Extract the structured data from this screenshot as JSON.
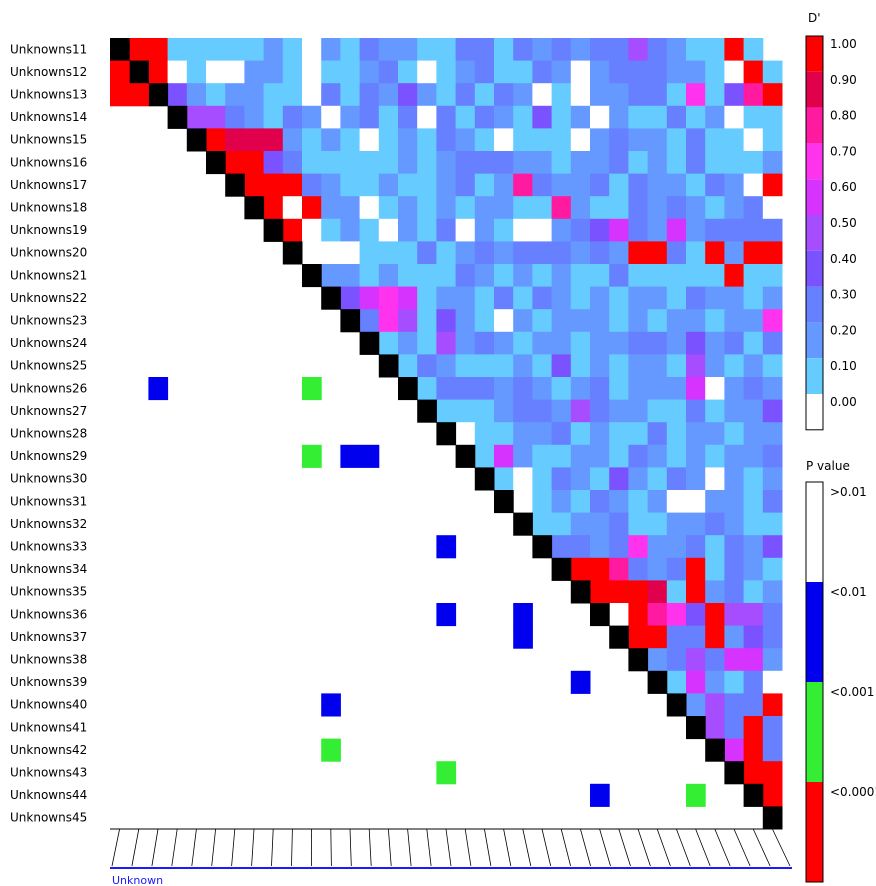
{
  "chart_data": {
    "type": "heatmap",
    "title": "",
    "markers": [
      "Unknowns11",
      "Unknowns12",
      "Unknowns13",
      "Unknowns14",
      "Unknowns15",
      "Unknowns16",
      "Unknowns17",
      "Unknowns18",
      "Unknowns19",
      "Unknowns20",
      "Unknowns21",
      "Unknowns22",
      "Unknowns23",
      "Unknowns24",
      "Unknowns25",
      "Unknowns26",
      "Unknowns27",
      "Unknowns28",
      "Unknowns29",
      "Unknowns30",
      "Unknowns31",
      "Unknowns32",
      "Unknowns33",
      "Unknowns34",
      "Unknowns35",
      "Unknowns36",
      "Unknowns37",
      "Unknowns38",
      "Unknowns39",
      "Unknowns40",
      "Unknowns41",
      "Unknowns42",
      "Unknowns43",
      "Unknowns44",
      "Unknowns45"
    ],
    "upper_triangle_metric": "D'",
    "lower_triangle_metric": "P value",
    "d_prime_legend": {
      "title": "D'",
      "labels": [
        "1.00",
        "0.90",
        "0.80",
        "0.70",
        "0.60",
        "0.50",
        "0.40",
        "0.30",
        "0.20",
        "0.10",
        "0.00"
      ],
      "colors": [
        "#ff0000",
        "#e0004c",
        "#ff1aa0",
        "#ff33ee",
        "#d633ff",
        "#a64dff",
        "#7a52ff",
        "#6680ff",
        "#6699ff",
        "#66ccff",
        "#ffffff"
      ]
    },
    "p_value_legend": {
      "title": "P value",
      "labels": [
        ">0.01",
        "<0.01",
        "<0.001",
        "<0.0001"
      ],
      "colors": [
        "#ffffff",
        "#0000ee",
        "#33ee33",
        "#ff0000"
      ]
    },
    "x_axis_label": "Unknown",
    "diagonal_color": "#000000",
    "bin_index": {
      "0": "0.00",
      "1": "0.10",
      "2": "0.20",
      "3": "0.30",
      "4": "0.40",
      "5": "0.50",
      "6": "0.60",
      "7": "0.70",
      "8": "0.80",
      "9": "0.90",
      "10": "1.00"
    },
    "d_prime_bins": [
      [
        10,
        10,
        1,
        1,
        1,
        1,
        1,
        2,
        1,
        0,
        2,
        1,
        3,
        2,
        2,
        1,
        1,
        3,
        3,
        1,
        3,
        2,
        3,
        2,
        3,
        3,
        5,
        3,
        2,
        1,
        1,
        10,
        1
      ],
      [
        10,
        0,
        1,
        0,
        0,
        2,
        2,
        1,
        0,
        1,
        1,
        2,
        3,
        1,
        0,
        1,
        2,
        3,
        1,
        1,
        3,
        2,
        0,
        2,
        3,
        3,
        3,
        2,
        2,
        1,
        0,
        10,
        1
      ],
      [
        4,
        2,
        1,
        2,
        2,
        1,
        1,
        0,
        3,
        1,
        3,
        2,
        4,
        2,
        1,
        3,
        1,
        3,
        2,
        0,
        1,
        0,
        2,
        2,
        3,
        3,
        1,
        7,
        1,
        4,
        8,
        10,
        1
      ],
      [
        5,
        5,
        3,
        2,
        1,
        3,
        2,
        0,
        2,
        3,
        1,
        3,
        0,
        3,
        1,
        3,
        2,
        1,
        4,
        1,
        2,
        0,
        2,
        1,
        1,
        3,
        1,
        2,
        0,
        1,
        1,
        10,
        2
      ],
      [
        10,
        9,
        9,
        9,
        2,
        1,
        2,
        1,
        0,
        1,
        2,
        1,
        3,
        2,
        1,
        0,
        1,
        1,
        1,
        0,
        2,
        3,
        2,
        2,
        1,
        3,
        1,
        1,
        0,
        1,
        1,
        10,
        1
      ],
      [
        10,
        10,
        4,
        3,
        1,
        1,
        1,
        1,
        1,
        2,
        1,
        2,
        3,
        3,
        3,
        2,
        2,
        1,
        2,
        2,
        3,
        1,
        2,
        1,
        3,
        1,
        1,
        1,
        2,
        3,
        0,
        6,
        1
      ],
      [
        10,
        10,
        10,
        3,
        2,
        1,
        1,
        2,
        1,
        1,
        2,
        3,
        1,
        2,
        8,
        3,
        2,
        2,
        3,
        1,
        3,
        2,
        2,
        1,
        3,
        2,
        0,
        10,
        1,
        1,
        7,
        3,
        3
      ],
      [
        10,
        0,
        10,
        2,
        2,
        0,
        1,
        2,
        1,
        2,
        1,
        2,
        2,
        1,
        1,
        8,
        2,
        1,
        1,
        3,
        2,
        3,
        2,
        1,
        2,
        3,
        0,
        4,
        1,
        3,
        3,
        10,
        1
      ],
      [
        10,
        0,
        1,
        2,
        1,
        0,
        2,
        1,
        3,
        0,
        2,
        1,
        0,
        0,
        2,
        3,
        4,
        6,
        3,
        2,
        6,
        2,
        3,
        3,
        3,
        3,
        4,
        5,
        3,
        1,
        1,
        10,
        2
      ],
      [
        0,
        0,
        0,
        1,
        1,
        1,
        3,
        1,
        2,
        3,
        2,
        3,
        3,
        3,
        2,
        3,
        2,
        10,
        10,
        3,
        1,
        10,
        2,
        10,
        10,
        10,
        10,
        10,
        2
      ],
      [
        2,
        2,
        1,
        2,
        1,
        1,
        1,
        3,
        2,
        1,
        2,
        1,
        2,
        1,
        1,
        3,
        1,
        1,
        1,
        1,
        1,
        10,
        1,
        1,
        1,
        3,
        4,
        3,
        1
      ],
      [
        4,
        6,
        7,
        6,
        1,
        2,
        2,
        1,
        3,
        1,
        3,
        2,
        1,
        2,
        1,
        2,
        2,
        1,
        3,
        2,
        2,
        1,
        2,
        3,
        5,
        6,
        2,
        1,
        1
      ],
      [
        3,
        7,
        5,
        1,
        4,
        2,
        1,
        0,
        2,
        1,
        2,
        2,
        2,
        1,
        2,
        1,
        2,
        2,
        1,
        2,
        2,
        7,
        2,
        8,
        3,
        10,
        2
      ],
      [
        1,
        2,
        1,
        5,
        2,
        3,
        2,
        1,
        2,
        2,
        1,
        2,
        2,
        3,
        3,
        2,
        4,
        2,
        3,
        1,
        3,
        3,
        2,
        5,
        3,
        10,
        2
      ],
      [
        1,
        3,
        2,
        1,
        1,
        1,
        2,
        1,
        4,
        1,
        2,
        1,
        2,
        2,
        1,
        5,
        2,
        1,
        2,
        1,
        2,
        2,
        1,
        3,
        2,
        3,
        3
      ],
      [
        1,
        3,
        3,
        3,
        2,
        3,
        2,
        1,
        2,
        3,
        1,
        2,
        2,
        2,
        6,
        0,
        2,
        3,
        2,
        1,
        1,
        1,
        3,
        1,
        10,
        2
      ],
      [
        1,
        1,
        1,
        2,
        3,
        3,
        2,
        5,
        3,
        2,
        2,
        1,
        1,
        3,
        1,
        2,
        2,
        4,
        1,
        2,
        1,
        2,
        10,
        1,
        2
      ],
      [
        0,
        1,
        1,
        2,
        2,
        3,
        1,
        2,
        1,
        1,
        3,
        1,
        2,
        2,
        1,
        2,
        2,
        1,
        0,
        2,
        1,
        0,
        1,
        2
      ],
      [
        1,
        6,
        2,
        1,
        1,
        2,
        2,
        1,
        3,
        2,
        1,
        2,
        1,
        2,
        2,
        3,
        1,
        2,
        1,
        2,
        2,
        7,
        2
      ],
      [
        1,
        0,
        1,
        3,
        2,
        1,
        4,
        2,
        1,
        3,
        2,
        0,
        2,
        1,
        2,
        1,
        2,
        3,
        1,
        3,
        2,
        2
      ],
      [
        0,
        1,
        2,
        1,
        3,
        2,
        1,
        2,
        0,
        0,
        2,
        2,
        1,
        3,
        2,
        1,
        3,
        2,
        3,
        2,
        1
      ],
      [
        1,
        1,
        2,
        2,
        3,
        1,
        1,
        2,
        2,
        3,
        2,
        1,
        1,
        2,
        1,
        1,
        3,
        2,
        3,
        2
      ],
      [
        3,
        3,
        2,
        3,
        7,
        2,
        2,
        3,
        1,
        3,
        2,
        4,
        4,
        3,
        2,
        1,
        3,
        3,
        1
      ],
      [
        10,
        10,
        8,
        3,
        2,
        3,
        10,
        1,
        3,
        2,
        1,
        2,
        8,
        2,
        2,
        3,
        2,
        2
      ],
      [
        10,
        10,
        10,
        9,
        1,
        10,
        2,
        3,
        1,
        2,
        5,
        8,
        8,
        6,
        6,
        7,
        7,
        7,
        7
      ],
      [
        0,
        10,
        8,
        7,
        4,
        10,
        5,
        5,
        3,
        0,
        2,
        4,
        10,
        2,
        2
      ],
      [
        10,
        10,
        3,
        3,
        10,
        2,
        4,
        3,
        2,
        4,
        2,
        10,
        3,
        3
      ],
      [
        2,
        3,
        5,
        3,
        6,
        6,
        2,
        1,
        10,
        3,
        3,
        3,
        3
      ],
      [
        1,
        6,
        2,
        1,
        3,
        0,
        1,
        10,
        1,
        1,
        1,
        1
      ],
      [
        2,
        5,
        3,
        3,
        10,
        2,
        1,
        1,
        1,
        1,
        1
      ],
      [
        5,
        3,
        10,
        3,
        1,
        1,
        1,
        1,
        1,
        1
      ],
      [
        6,
        10,
        3,
        2,
        2,
        2,
        2,
        2,
        2
      ],
      [
        10,
        10,
        1,
        1,
        1,
        1,
        1,
        1
      ],
      [
        10,
        1,
        1,
        1,
        1,
        1,
        1
      ],
      []
    ],
    "p_value_cells_lower": [
      {
        "row": "Unknowns12",
        "col": "Unknowns11",
        "p": "<0.0001"
      },
      {
        "row": "Unknowns13",
        "col": "Unknowns11",
        "p": "<0.0001"
      },
      {
        "row": "Unknowns13",
        "col": "Unknowns12",
        "p": "<0.0001"
      },
      {
        "row": "Unknowns26",
        "col": "Unknowns13",
        "p": "<0.01"
      },
      {
        "row": "Unknowns26",
        "col": "Unknowns21",
        "p": "<0.001"
      },
      {
        "row": "Unknowns29",
        "col": "Unknowns21",
        "p": "<0.001"
      },
      {
        "row": "Unknowns29",
        "col": "Unknowns23",
        "p": "<0.01"
      },
      {
        "row": "Unknowns29",
        "col": "Unknowns24",
        "p": "<0.01"
      },
      {
        "row": "Unknowns33",
        "col": "Unknowns28",
        "p": "<0.01"
      },
      {
        "row": "Unknowns36",
        "col": "Unknowns28",
        "p": "<0.01"
      },
      {
        "row": "Unknowns36",
        "col": "Unknowns32",
        "p": "<0.01"
      },
      {
        "row": "Unknowns37",
        "col": "Unknowns32",
        "p": "<0.01"
      },
      {
        "row": "Unknowns39",
        "col": "Unknowns35",
        "p": "<0.01"
      },
      {
        "row": "Unknowns40",
        "col": "Unknowns22",
        "p": "<0.01"
      },
      {
        "row": "Unknowns42",
        "col": "Unknowns22",
        "p": "<0.001"
      },
      {
        "row": "Unknowns43",
        "col": "Unknowns28",
        "p": "<0.001"
      },
      {
        "row": "Unknowns44",
        "col": "Unknowns36",
        "p": "<0.01"
      },
      {
        "row": "Unknowns44",
        "col": "Unknowns41",
        "p": "<0.001"
      }
    ]
  }
}
